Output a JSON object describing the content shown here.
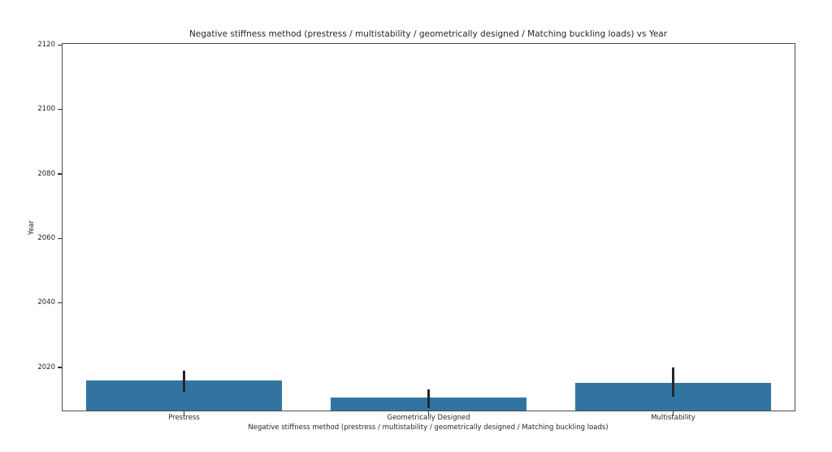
{
  "figure": {
    "title": "Negative stiffness method (prestress / multistability / geometrically designed / Matching buckling loads) vs Year"
  },
  "chart_data": {
    "type": "bar",
    "title": "Negative stiffness method (prestress / multistability / geometrically designed / Matching buckling loads) vs Year",
    "xlabel": "Negative stiffness method (prestress / multistability / geometrically designed / Matching buckling loads)",
    "ylabel": "Year",
    "categories": [
      "Prestress",
      "Geometrically Designed",
      "Multistability"
    ],
    "values": [
      2016.1,
      2010.6,
      2015.3
    ],
    "error_intervals": [
      [
        2012.5,
        2019.0
      ],
      [
        2007.5,
        2013.2
      ],
      [
        2011.0,
        2019.9
      ]
    ],
    "yticks": [
      2020,
      2040,
      2060,
      2080,
      2100,
      2120
    ],
    "ylim": [
      2006.4,
      2120.6
    ],
    "bar_width_fraction": 0.8,
    "bar_color": "#3274a1",
    "error_bar_color": "#262626",
    "grid": false,
    "legend": "none",
    "orientation": "vertical"
  }
}
